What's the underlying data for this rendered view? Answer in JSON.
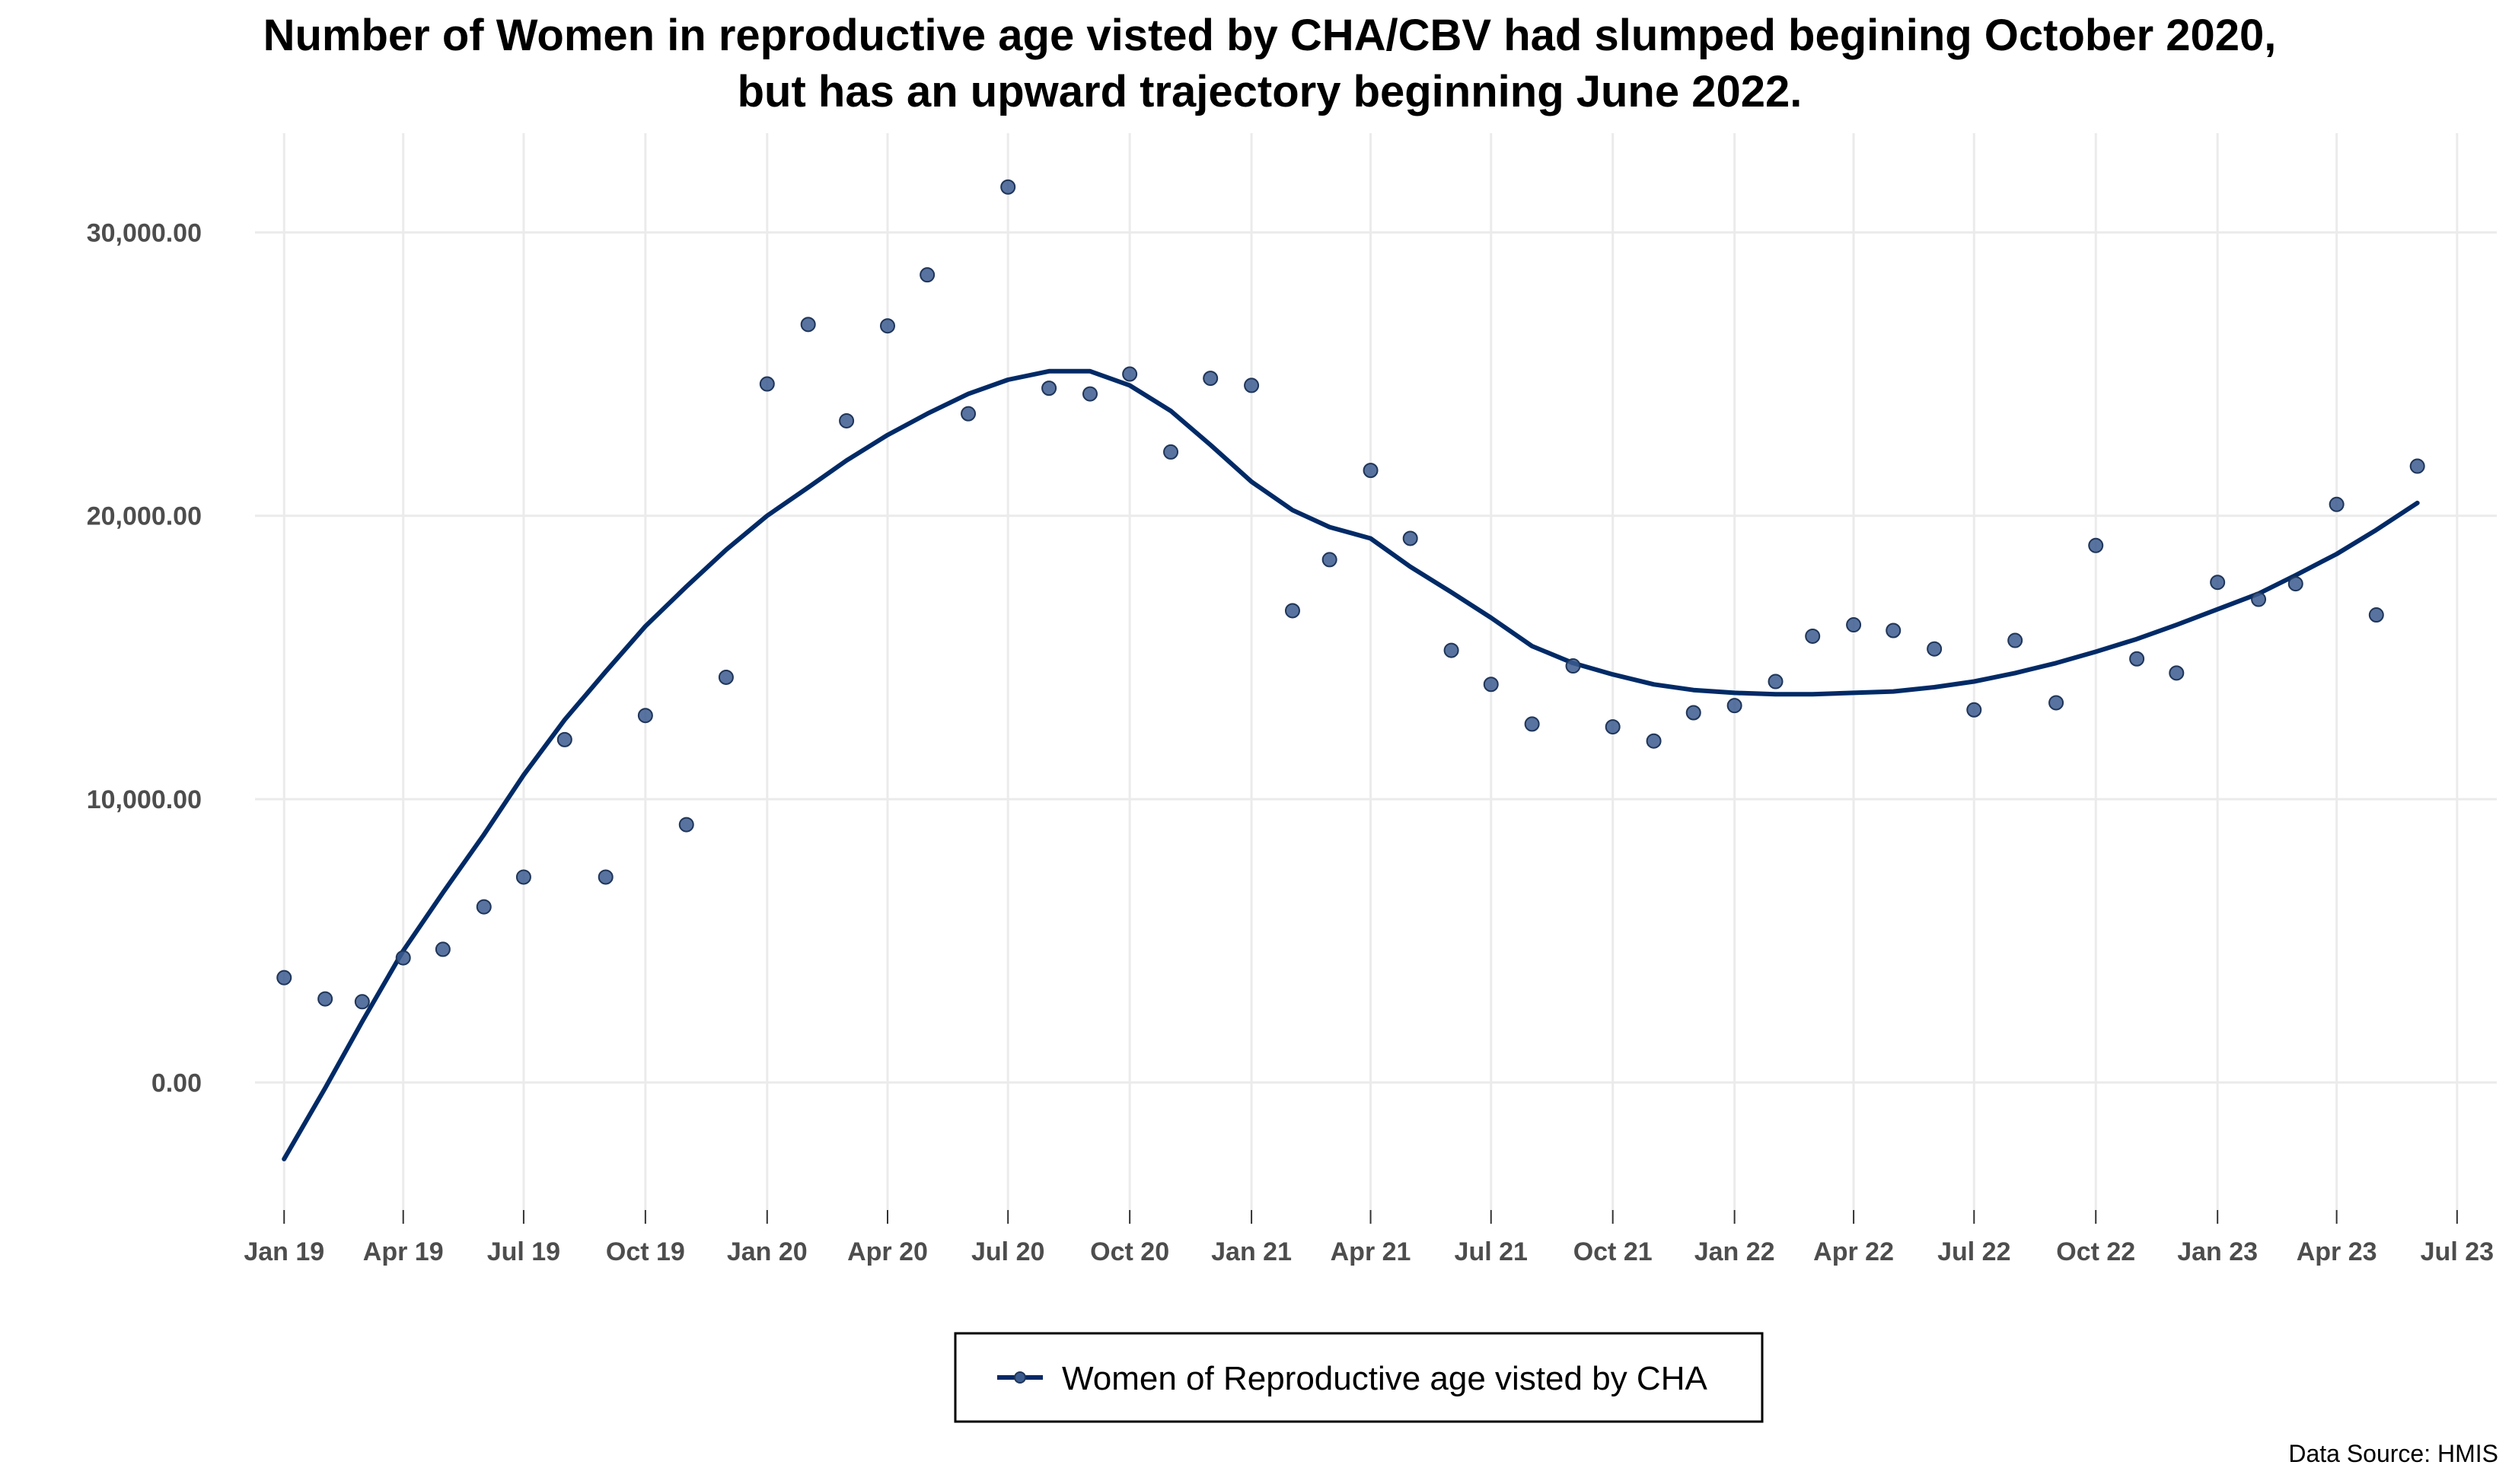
{
  "chart_data": {
    "type": "scatter",
    "title": [
      "Number of Women in reproductive age visted by CHA/CBV had slumped begining October 2020,",
      "but has an upward trajectory beginning June 2022."
    ],
    "xlabel": "",
    "ylabel": "",
    "x_ticks": [
      "Jan 19",
      "Apr 19",
      "Jul 19",
      "Oct 19",
      "Jan 20",
      "Apr 20",
      "Jul 20",
      "Oct 20",
      "Jan 21",
      "Apr 21",
      "Jul 21",
      "Oct 21",
      "Jan 22",
      "Apr 22",
      "Jul 22",
      "Oct 22",
      "Jan 23",
      "Apr 23",
      "Jul 23"
    ],
    "y_ticks": [
      0,
      10000,
      20000,
      30000
    ],
    "y_tick_labels": [
      "0.00",
      "10,000.00",
      "20,000.00",
      "30,000.00"
    ],
    "xlim": [
      "2018-12-10",
      "2023-07-31"
    ],
    "ylim": [
      -4500,
      33500
    ],
    "grid": true,
    "legend_position": "bottom",
    "series": [
      {
        "name": "Women of Reproductive age visted by CHA",
        "type": "scatter",
        "color": "#3b5b8f",
        "points": [
          [
            "2019-01-01",
            3700
          ],
          [
            "2019-02-01",
            2950
          ],
          [
            "2019-03-01",
            2850
          ],
          [
            "2019-04-01",
            4400
          ],
          [
            "2019-05-01",
            4700
          ],
          [
            "2019-06-01",
            6200
          ],
          [
            "2019-07-01",
            7250
          ],
          [
            "2019-08-01",
            12100
          ],
          [
            "2019-09-01",
            7250
          ],
          [
            "2019-10-01",
            12950
          ],
          [
            "2019-11-01",
            9100
          ],
          [
            "2019-12-01",
            14300
          ],
          [
            "2020-01-01",
            24650
          ],
          [
            "2020-02-01",
            26750
          ],
          [
            "2020-03-01",
            23350
          ],
          [
            "2020-04-01",
            26700
          ],
          [
            "2020-05-01",
            28500
          ],
          [
            "2020-06-01",
            23600
          ],
          [
            "2020-07-01",
            31600
          ],
          [
            "2020-08-01",
            24500
          ],
          [
            "2020-09-01",
            24300
          ],
          [
            "2020-10-01",
            25000
          ],
          [
            "2020-11-01",
            22250
          ],
          [
            "2020-12-01",
            24850
          ],
          [
            "2021-01-01",
            24600
          ],
          [
            "2021-02-01",
            16650
          ],
          [
            "2021-03-01",
            18450
          ],
          [
            "2021-04-01",
            21600
          ],
          [
            "2021-05-01",
            19200
          ],
          [
            "2021-06-01",
            15250
          ],
          [
            "2021-07-01",
            14050
          ],
          [
            "2021-08-01",
            12650
          ],
          [
            "2021-09-01",
            14700
          ],
          [
            "2021-10-01",
            12550
          ],
          [
            "2021-11-01",
            12050
          ],
          [
            "2021-12-01",
            13050
          ],
          [
            "2022-01-01",
            13300
          ],
          [
            "2022-02-01",
            14150
          ],
          [
            "2022-03-01",
            15750
          ],
          [
            "2022-04-01",
            16150
          ],
          [
            "2022-05-01",
            15950
          ],
          [
            "2022-06-01",
            15300
          ],
          [
            "2022-07-01",
            13150
          ],
          [
            "2022-08-01",
            15600
          ],
          [
            "2022-09-01",
            13400
          ],
          [
            "2022-10-01",
            18950
          ],
          [
            "2022-11-01",
            14950
          ],
          [
            "2022-12-01",
            14450
          ],
          [
            "2023-01-01",
            17650
          ],
          [
            "2023-02-01",
            17050
          ],
          [
            "2023-03-01",
            17600
          ],
          [
            "2023-04-01",
            20400
          ],
          [
            "2023-05-01",
            16500
          ],
          [
            "2023-06-01",
            21750
          ]
        ]
      },
      {
        "name": "Women of Reproductive age visted by CHA",
        "type": "line",
        "role": "trend",
        "color": "#002a66",
        "points": [
          [
            "2019-01-01",
            -2700
          ],
          [
            "2019-02-01",
            -200
          ],
          [
            "2019-03-01",
            2150
          ],
          [
            "2019-04-01",
            4650
          ],
          [
            "2019-05-01",
            6700
          ],
          [
            "2019-06-01",
            8750
          ],
          [
            "2019-07-01",
            10850
          ],
          [
            "2019-08-01",
            12800
          ],
          [
            "2019-09-01",
            14500
          ],
          [
            "2019-10-01",
            16100
          ],
          [
            "2019-11-01",
            17500
          ],
          [
            "2019-12-01",
            18800
          ],
          [
            "2020-01-01",
            20000
          ],
          [
            "2020-02-01",
            21000
          ],
          [
            "2020-03-01",
            21950
          ],
          [
            "2020-04-01",
            22850
          ],
          [
            "2020-05-01",
            23600
          ],
          [
            "2020-06-01",
            24300
          ],
          [
            "2020-07-01",
            24800
          ],
          [
            "2020-08-01",
            25100
          ],
          [
            "2020-09-01",
            25100
          ],
          [
            "2020-10-01",
            24600
          ],
          [
            "2020-11-01",
            23700
          ],
          [
            "2020-12-01",
            22500
          ],
          [
            "2021-01-01",
            21200
          ],
          [
            "2021-02-01",
            20200
          ],
          [
            "2021-03-01",
            19600
          ],
          [
            "2021-04-01",
            19200
          ],
          [
            "2021-05-01",
            18200
          ],
          [
            "2021-06-01",
            17300
          ],
          [
            "2021-07-01",
            16400
          ],
          [
            "2021-08-01",
            15400
          ],
          [
            "2021-09-01",
            14800
          ],
          [
            "2021-10-01",
            14400
          ],
          [
            "2021-11-01",
            14050
          ],
          [
            "2021-12-01",
            13850
          ],
          [
            "2022-01-01",
            13750
          ],
          [
            "2022-02-01",
            13700
          ],
          [
            "2022-03-01",
            13700
          ],
          [
            "2022-04-01",
            13750
          ],
          [
            "2022-05-01",
            13800
          ],
          [
            "2022-06-01",
            13950
          ],
          [
            "2022-07-01",
            14150
          ],
          [
            "2022-08-01",
            14450
          ],
          [
            "2022-09-01",
            14800
          ],
          [
            "2022-10-01",
            15200
          ],
          [
            "2022-11-01",
            15650
          ],
          [
            "2022-12-01",
            16150
          ],
          [
            "2023-01-01",
            16700
          ],
          [
            "2023-02-01",
            17250
          ],
          [
            "2023-03-01",
            17900
          ],
          [
            "2023-04-01",
            18650
          ],
          [
            "2023-05-01",
            19500
          ],
          [
            "2023-06-01",
            20450
          ]
        ]
      }
    ],
    "source": "Data Source: HMIS"
  }
}
